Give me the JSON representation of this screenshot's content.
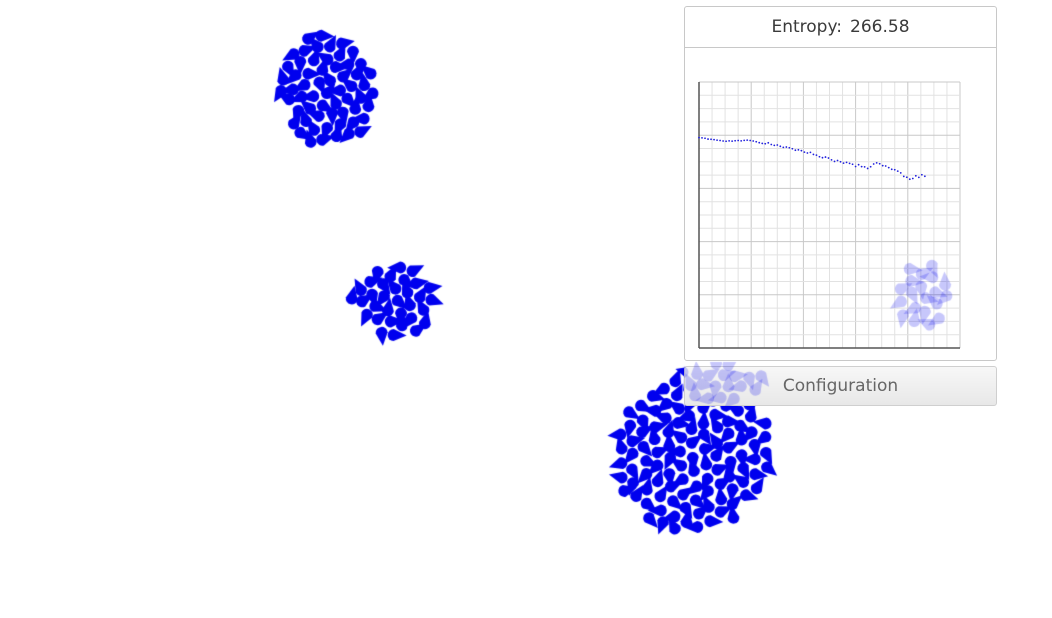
{
  "entropy_panel": {
    "label": "Entropy:",
    "value": "266.58"
  },
  "config_button": {
    "label": "Configuration"
  },
  "colors": {
    "particle": "#0000ee",
    "series": "#2222dd",
    "grid": "#e2e2e2",
    "grid_major": "#c8c8c8"
  },
  "chart_data": {
    "type": "scatter",
    "title": "",
    "xlabel": "",
    "ylabel": "",
    "grid": true,
    "series": [
      {
        "values": [
          [
            0,
            174
          ],
          [
            3,
            173.8
          ],
          [
            6,
            173.5
          ],
          [
            9,
            172.8
          ],
          [
            12,
            172.6
          ],
          [
            15,
            172.3
          ],
          [
            18,
            171.9
          ],
          [
            21,
            171.6
          ],
          [
            24,
            171.2
          ],
          [
            27,
            171.0
          ],
          [
            30,
            171.3
          ],
          [
            33,
            171.1
          ],
          [
            36,
            171.4
          ],
          [
            39,
            171.6
          ],
          [
            42,
            171.3
          ],
          [
            45,
            171.7
          ],
          [
            48,
            171.9
          ],
          [
            51,
            171.6
          ],
          [
            54,
            171.2
          ],
          [
            57,
            170.6
          ],
          [
            60,
            169.8
          ],
          [
            63,
            169.2
          ],
          [
            66,
            168.9
          ],
          [
            69,
            169.7
          ],
          [
            72,
            168.3
          ],
          [
            75,
            167.6
          ],
          [
            78,
            167.9
          ],
          [
            81,
            166.8
          ],
          [
            84,
            165.9
          ],
          [
            87,
            166.2
          ],
          [
            90,
            165.6
          ],
          [
            93,
            164.8
          ],
          [
            96,
            163.6
          ],
          [
            99,
            163.9
          ],
          [
            102,
            163.2
          ],
          [
            105,
            162.0
          ],
          [
            108,
            161.3
          ],
          [
            111,
            161.8
          ],
          [
            114,
            160.1
          ],
          [
            117,
            159.5
          ],
          [
            120,
            158.2
          ],
          [
            123,
            157.4
          ],
          [
            126,
            157.9
          ],
          [
            129,
            157.1
          ],
          [
            132,
            155.6
          ],
          [
            135,
            154.3
          ],
          [
            138,
            155.1
          ],
          [
            141,
            154.0
          ],
          [
            144,
            152.9
          ],
          [
            147,
            153.5
          ],
          [
            150,
            152.7
          ],
          [
            153,
            152.0
          ],
          [
            156,
            150.1
          ],
          [
            159,
            151.6
          ],
          [
            162,
            150.0
          ],
          [
            165,
            149.8
          ],
          [
            168,
            148.5
          ],
          [
            171,
            149.9
          ],
          [
            174,
            152.2
          ],
          [
            177,
            153.1
          ],
          [
            180,
            152.4
          ],
          [
            183,
            150.8
          ],
          [
            186,
            150.5
          ],
          [
            189,
            149.2
          ],
          [
            192,
            147.8
          ],
          [
            195,
            147.4
          ],
          [
            198,
            146.3
          ],
          [
            201,
            144.8
          ],
          [
            204,
            141.9
          ],
          [
            207,
            141.2
          ],
          [
            210,
            139.6
          ],
          [
            213,
            140.2
          ],
          [
            216,
            142.4
          ],
          [
            219,
            141.1
          ],
          [
            222,
            143.3
          ],
          [
            225,
            142.0
          ]
        ]
      }
    ]
  }
}
